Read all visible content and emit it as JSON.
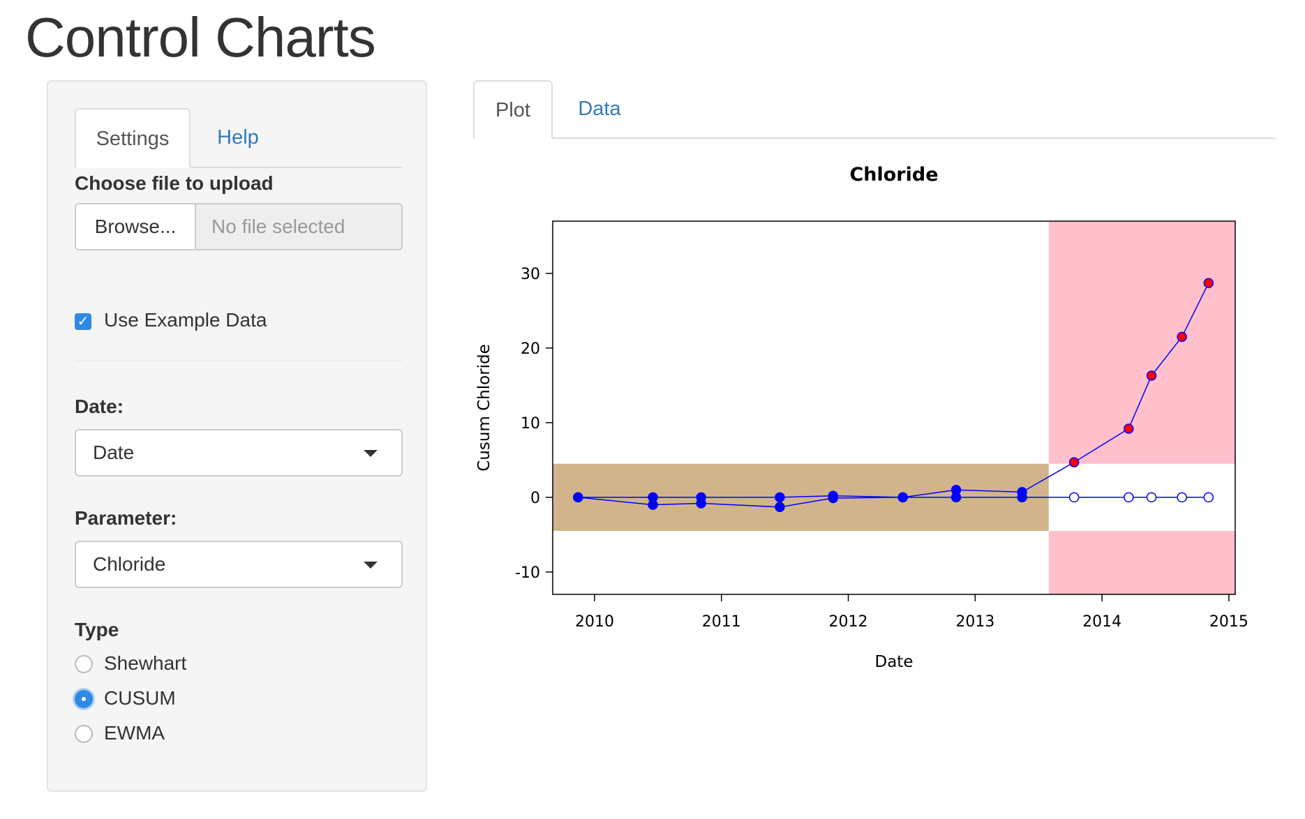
{
  "page": {
    "title": "Control Charts"
  },
  "sidebar": {
    "tabs": [
      {
        "label": "Settings",
        "active": true
      },
      {
        "label": "Help",
        "active": false
      }
    ],
    "upload": {
      "label": "Choose file to upload",
      "button_label": "Browse...",
      "status": "No file selected"
    },
    "example_data": {
      "label": "Use Example Data",
      "checked": true
    },
    "date": {
      "label": "Date:",
      "value": "Date"
    },
    "parameter": {
      "label": "Parameter:",
      "value": "Chloride"
    },
    "type": {
      "label": "Type",
      "options": [
        {
          "label": "Shewhart",
          "checked": false
        },
        {
          "label": "CUSUM",
          "checked": true
        },
        {
          "label": "EWMA",
          "checked": false
        }
      ]
    }
  },
  "main": {
    "tabs": [
      {
        "label": "Plot",
        "active": true
      },
      {
        "label": "Data",
        "active": false
      }
    ]
  },
  "colors": {
    "link": "#337ab7",
    "accent": "#2f8ae7",
    "baseline_band": "#d2b48c",
    "alarm_band": "#ffc0cb",
    "series": "#0000ff",
    "alarm_point": "#ff0000"
  },
  "chart_data": {
    "type": "line",
    "title": "Chloride",
    "xlabel": "Date",
    "ylabel": "Cusum Chloride",
    "xlim": [
      2009.67,
      2015.05
    ],
    "ylim": [
      -13,
      37
    ],
    "xticks": [
      2010,
      2011,
      2012,
      2013,
      2014,
      2015
    ],
    "yticks": [
      -10,
      0,
      10,
      20,
      30
    ],
    "baseline_period": {
      "x_range": [
        2009.67,
        2013.58
      ],
      "y_range": [
        -4.5,
        4.5
      ]
    },
    "alarm_period": {
      "x_range": [
        2013.58,
        2015.05
      ],
      "limit_range": [
        -4.5,
        4.5
      ]
    },
    "series": [
      {
        "role": "upper cusum",
        "x": [
          2009.87,
          2010.46,
          2010.84,
          2011.46,
          2011.88,
          2012.43,
          2012.85,
          2013.37,
          2013.78,
          2014.21,
          2014.39,
          2014.63,
          2014.84
        ],
        "values": [
          0,
          0,
          0,
          0,
          0.2,
          0,
          1.0,
          0.7,
          4.7,
          9.2,
          16.3,
          21.5,
          28.7
        ]
      },
      {
        "role": "lower cusum",
        "x": [
          2009.87,
          2010.46,
          2010.84,
          2011.46,
          2011.88,
          2012.43,
          2012.85,
          2013.37,
          2013.78,
          2014.21,
          2014.39,
          2014.63,
          2014.84
        ],
        "values": [
          0,
          -1.0,
          -0.8,
          -1.3,
          -0.1,
          0,
          0,
          0,
          0,
          0,
          0,
          0,
          0
        ]
      }
    ]
  }
}
